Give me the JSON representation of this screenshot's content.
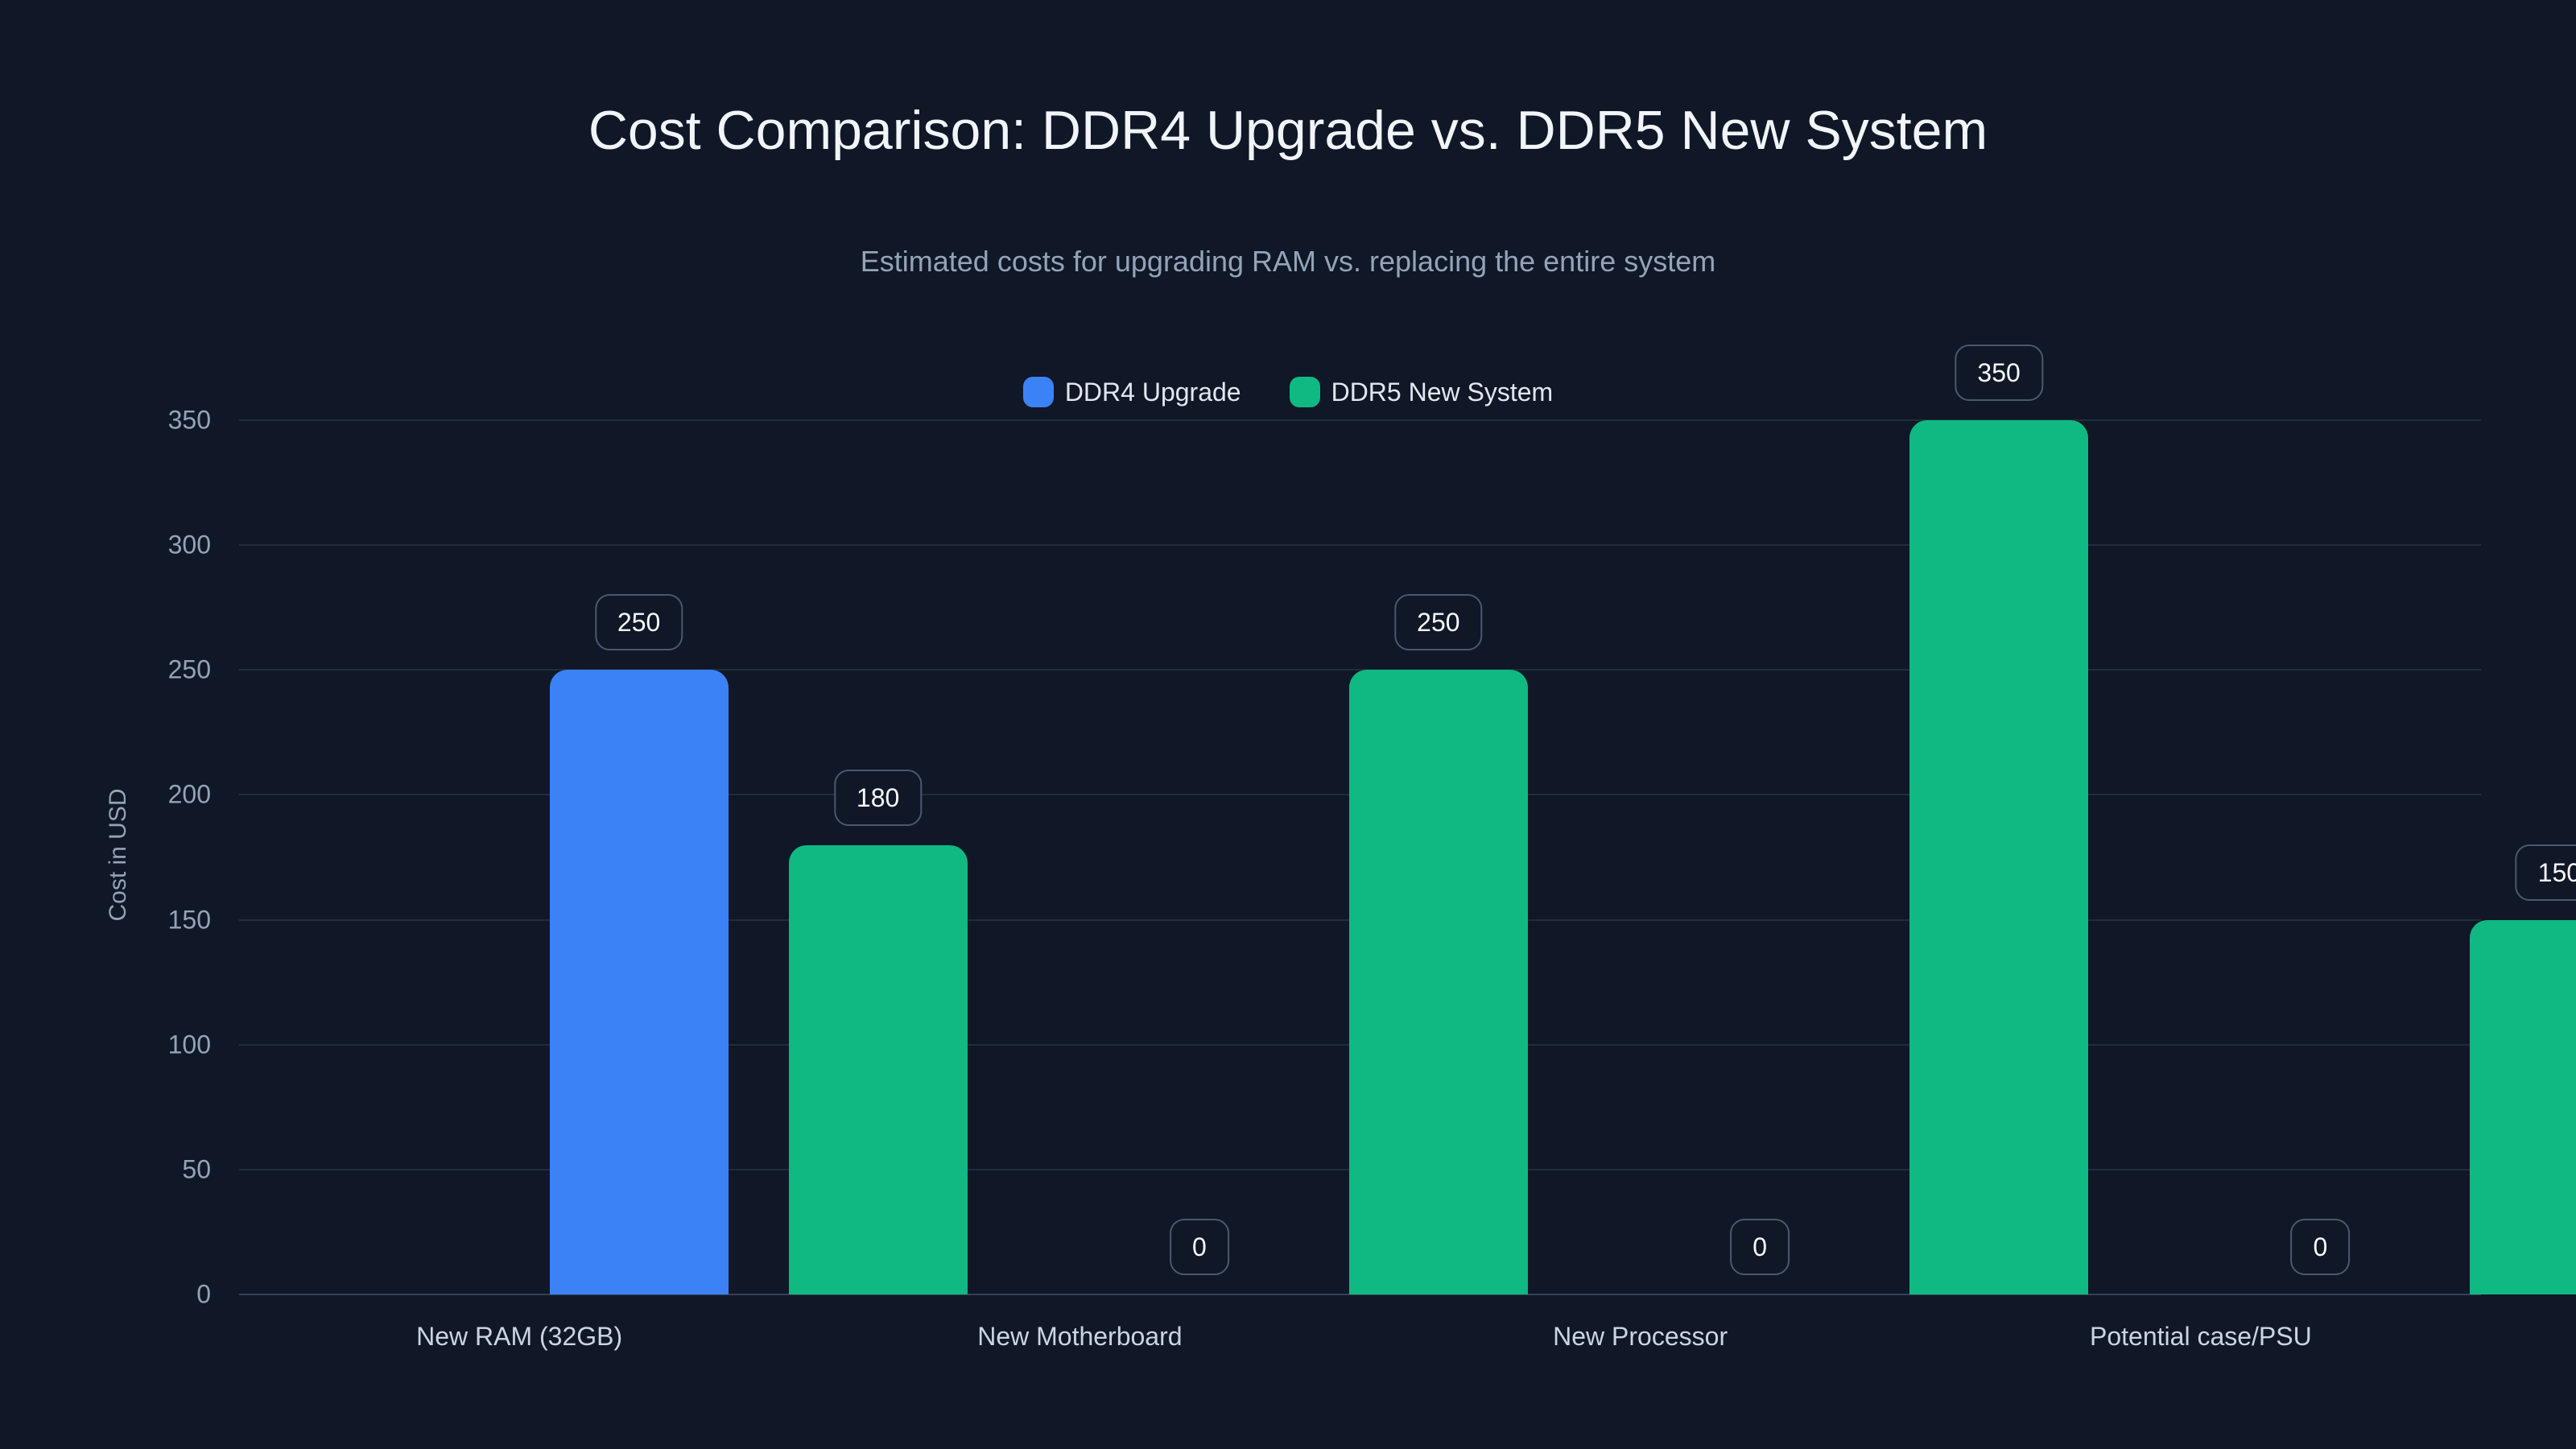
{
  "chart_data": {
    "type": "bar",
    "title": "Cost Comparison: DDR4 Upgrade vs. DDR5 New System",
    "subtitle": "Estimated costs for upgrading RAM vs. replacing the entire system",
    "ylabel": "Cost in USD",
    "categories": [
      "New RAM (32GB)",
      "New Motherboard",
      "New Processor",
      "Potential case/PSU"
    ],
    "series": [
      {
        "name": "DDR4 Upgrade",
        "color": "#3b82f6",
        "values": [
          250,
          0,
          0,
          0
        ]
      },
      {
        "name": "DDR5 New System",
        "color": "#10b981",
        "values": [
          180,
          250,
          350,
          150
        ]
      }
    ],
    "ylim": [
      0,
      350
    ],
    "ytick_step": 50,
    "grid": "horizontal",
    "legend_position": "top-center",
    "value_labels": true,
    "background": "#101727"
  }
}
